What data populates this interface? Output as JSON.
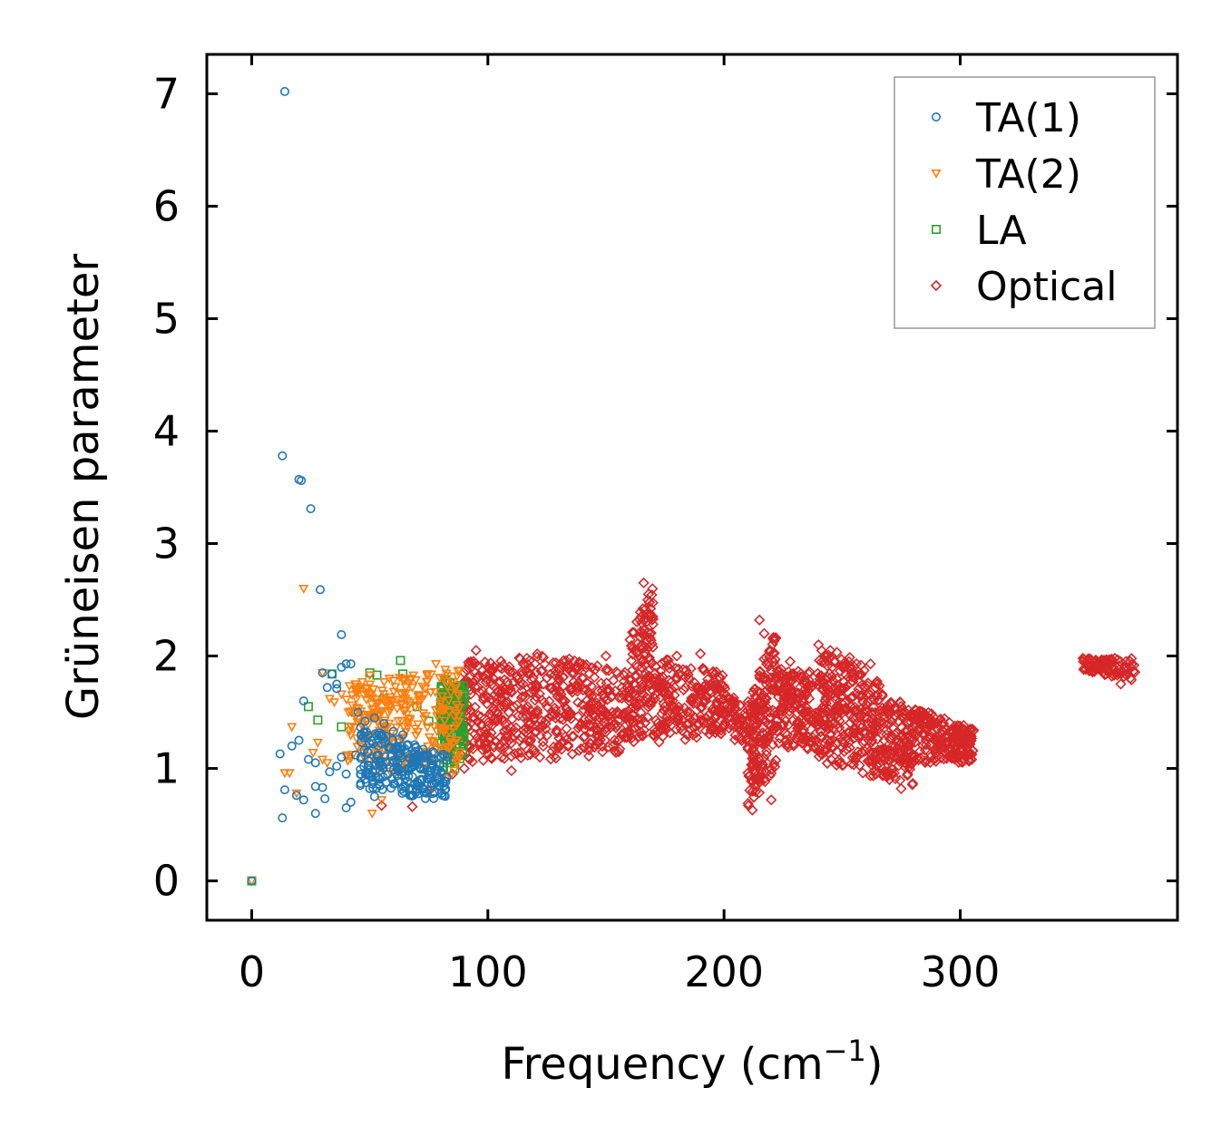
{
  "chart_data": {
    "type": "scatter",
    "title": "",
    "xlabel": "Frequency (cm",
    "xlabel_sup": "−1",
    "xlabel_close": ")",
    "ylabel": "Grüneisen parameter",
    "xlim": [
      -19,
      392
    ],
    "ylim": [
      -0.35,
      7.35
    ],
    "xticks": [
      0,
      100,
      200,
      300
    ],
    "xtick_labels": [
      "0",
      "100",
      "200",
      "300"
    ],
    "yticks": [
      0,
      1,
      2,
      3,
      4,
      5,
      6,
      7
    ],
    "ytick_labels": [
      "0",
      "1",
      "2",
      "3",
      "4",
      "5",
      "6",
      "7"
    ],
    "grid": false,
    "legend_position": "top-right",
    "series": [
      {
        "name": "TA(1)",
        "color": "#1f77b4",
        "marker": "circle",
        "points": [
          [
            0,
            0
          ],
          [
            14,
            7.02
          ],
          [
            13,
            3.78
          ],
          [
            20,
            3.57
          ],
          [
            21,
            3.56
          ],
          [
            25,
            3.31
          ],
          [
            29,
            2.59
          ],
          [
            38,
            2.19
          ],
          [
            30,
            1.85
          ],
          [
            34,
            1.84
          ],
          [
            36,
            1.75
          ],
          [
            38,
            1.9
          ],
          [
            40,
            1.93
          ],
          [
            42,
            1.93
          ],
          [
            22,
            1.6
          ],
          [
            32,
            1.72
          ],
          [
            36,
            1.71
          ],
          [
            17,
            1.2
          ],
          [
            20,
            1.25
          ],
          [
            12,
            1.13
          ],
          [
            24,
            1.08
          ],
          [
            27,
            1.05
          ],
          [
            14,
            0.81
          ],
          [
            19,
            0.76
          ],
          [
            22,
            0.72
          ],
          [
            27,
            0.84
          ],
          [
            30,
            0.83
          ],
          [
            31,
            0.73
          ],
          [
            13,
            0.56
          ],
          [
            27,
            0.6
          ],
          [
            40,
            0.65
          ],
          [
            42,
            0.7
          ],
          [
            45,
            1.5
          ],
          [
            48,
            1.42
          ],
          [
            52,
            1.45
          ],
          [
            56,
            1.4
          ],
          [
            60,
            1.33
          ],
          [
            64,
            1.3
          ],
          [
            38,
            1.1
          ],
          [
            40,
            0.95
          ],
          [
            44,
            1.12
          ],
          [
            46,
            0.85
          ],
          [
            50,
            0.82
          ],
          [
            52,
            0.75
          ],
          [
            55,
            1.22
          ],
          [
            58,
            1.18
          ],
          [
            62,
            1.05
          ],
          [
            66,
            1.0
          ],
          [
            70,
            0.88
          ],
          [
            74,
            0.78
          ],
          [
            33,
            0.97
          ],
          [
            36,
            1.02
          ]
        ],
        "band": {
          "x0": 46,
          "x1": 83,
          "y_lo": [
            0.82,
            0.7
          ],
          "y_hi": [
            1.38,
            1.12
          ],
          "count": 240
        }
      },
      {
        "name": "TA(2)",
        "color": "#ff7f0e",
        "marker": "triangle-down",
        "points": [
          [
            0,
            0
          ],
          [
            22,
            2.6
          ],
          [
            17,
            1.37
          ],
          [
            14,
            0.96
          ],
          [
            16,
            0.96
          ],
          [
            19,
            0.78
          ],
          [
            30,
            1.85
          ],
          [
            33,
            1.62
          ],
          [
            35,
            1.59
          ],
          [
            38,
            1.66
          ],
          [
            26,
            1.14
          ],
          [
            28,
            1.23
          ],
          [
            30,
            1.08
          ],
          [
            32,
            1.05
          ],
          [
            45,
            1.7
          ],
          [
            50,
            1.83
          ],
          [
            51,
            0.6
          ],
          [
            55,
            0.72
          ],
          [
            60,
            1.78
          ],
          [
            68,
            1.72
          ],
          [
            72,
            1.62
          ],
          [
            78,
            1.93
          ],
          [
            82,
            1.88
          ]
        ],
        "band": {
          "x0": 40,
          "x1": 88,
          "y_lo": [
            1.0,
            0.85
          ],
          "y_hi": [
            1.75,
            1.9
          ],
          "count": 300
        }
      },
      {
        "name": "LA",
        "color": "#2ca02c",
        "marker": "square",
        "points": [
          [
            0,
            0
          ],
          [
            24,
            1.55
          ],
          [
            28,
            1.43
          ],
          [
            34,
            1.84
          ],
          [
            38,
            1.37
          ],
          [
            50,
            1.85
          ],
          [
            53,
            1.83
          ],
          [
            63,
            1.96
          ],
          [
            64,
            1.84
          ],
          [
            44,
            1.5
          ],
          [
            56,
            1.62
          ],
          [
            70,
            1.55
          ],
          [
            75,
            1.42
          ],
          [
            84,
            1.2
          ],
          [
            86,
            1.0
          ]
        ],
        "band": {
          "x0": 80,
          "x1": 90,
          "y_lo": [
            0.95,
            1.1
          ],
          "y_hi": [
            1.8,
            1.75
          ],
          "count": 160
        }
      },
      {
        "name": "Optical",
        "color": "#d62728",
        "marker": "diamond",
        "points": [
          [
            55,
            0.67
          ],
          [
            68,
            0.66
          ],
          [
            75,
            0.8
          ],
          [
            80,
            1.1
          ],
          [
            85,
            0.95
          ],
          [
            90,
            1.0
          ],
          [
            95,
            2.05
          ],
          [
            100,
            1.9
          ],
          [
            110,
            0.98
          ],
          [
            122,
            1.1
          ],
          [
            150,
            2.0
          ],
          [
            166,
            2.65
          ],
          [
            168,
            2.55
          ],
          [
            175,
            1.95
          ],
          [
            180,
            2.0
          ],
          [
            190,
            2.02
          ],
          [
            195,
            1.85
          ],
          [
            215,
            2.32
          ],
          [
            217,
            2.2
          ],
          [
            212,
            0.63
          ],
          [
            220,
            0.72
          ],
          [
            228,
            1.95
          ],
          [
            240,
            2.1
          ],
          [
            245,
            2.05
          ],
          [
            250,
            1.9
          ],
          [
            262,
            1.93
          ],
          [
            270,
            0.9
          ],
          [
            275,
            0.82
          ],
          [
            300,
            1.25
          ],
          [
            305,
            1.35
          ],
          [
            352,
            1.98
          ],
          [
            362,
            1.9
          ],
          [
            368,
            1.75
          ],
          [
            372,
            1.95
          ]
        ],
        "band_list": [
          {
            "x0": 88,
            "x1": 120,
            "y_lo": [
              1.05,
              1.1
            ],
            "y_hi": [
              1.95,
              2.0
            ],
            "count": 260
          },
          {
            "x0": 120,
            "x1": 160,
            "y_lo": [
              1.05,
              1.15
            ],
            "y_hi": [
              2.05,
              1.85
            ],
            "count": 300
          },
          {
            "x0": 160,
            "x1": 170,
            "y_lo": [
              1.2,
              1.3
            ],
            "y_hi": [
              2.2,
              2.62
            ],
            "count": 140
          },
          {
            "x0": 170,
            "x1": 200,
            "y_lo": [
              1.2,
              1.3
            ],
            "y_hi": [
              2.0,
              1.85
            ],
            "count": 220
          },
          {
            "x0": 200,
            "x1": 210,
            "y_lo": [
              1.3,
              1.2
            ],
            "y_hi": [
              1.75,
              1.55
            ],
            "count": 60
          },
          {
            "x0": 210,
            "x1": 222,
            "y_lo": [
              0.65,
              0.95
            ],
            "y_hi": [
              1.6,
              2.25
            ],
            "count": 200
          },
          {
            "x0": 222,
            "x1": 240,
            "y_lo": [
              1.2,
              1.15
            ],
            "y_hi": [
              1.9,
              1.85
            ],
            "count": 180
          },
          {
            "x0": 240,
            "x1": 258,
            "y_lo": [
              1.05,
              1.0
            ],
            "y_hi": [
              2.1,
              1.95
            ],
            "count": 220
          },
          {
            "x0": 258,
            "x1": 280,
            "y_lo": [
              0.95,
              0.85
            ],
            "y_hi": [
              1.9,
              1.5
            ],
            "count": 240
          },
          {
            "x0": 280,
            "x1": 306,
            "y_lo": [
              1.05,
              1.05
            ],
            "y_hi": [
              1.55,
              1.35
            ],
            "count": 220
          },
          {
            "x0": 352,
            "x1": 374,
            "y_lo": [
              1.85,
              1.78
            ],
            "y_hi": [
              1.98,
              1.98
            ],
            "count": 90
          }
        ]
      }
    ]
  }
}
